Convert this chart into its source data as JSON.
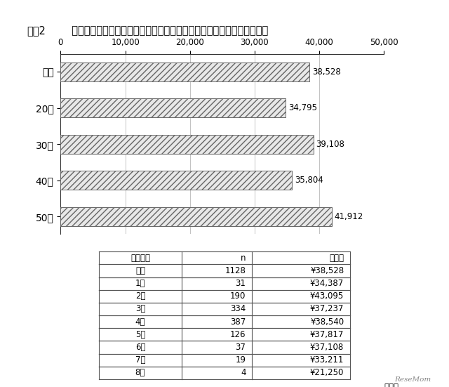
{
  "title_prefix": "図表2",
  "title_main": "  今年のゴールデンウィークの予算（全体、年代別、世帯人数別平均値）",
  "bar_categories": [
    "全体",
    "20代",
    "30代",
    "40代",
    "50代"
  ],
  "bar_values": [
    38528,
    34795,
    39108,
    35804,
    41912
  ],
  "bar_labels": [
    "38,528",
    "34,795",
    "39,108",
    "35,804",
    "41,912"
  ],
  "xlim": [
    0,
    50000
  ],
  "xticks": [
    0,
    10000,
    20000,
    30000,
    40000,
    50000
  ],
  "xtick_labels": [
    "0",
    "10,000",
    "20,000",
    "30,000",
    "40,000",
    "50,000"
  ],
  "xlabel_unit": "（円）",
  "table_headers": [
    "世帯人数",
    "n",
    "平均値"
  ],
  "table_rows": [
    [
      "全体",
      "1128",
      "¥38,528"
    ],
    [
      "1人",
      "31",
      "¥34,387"
    ],
    [
      "2人",
      "190",
      "¥43,095"
    ],
    [
      "3人",
      "334",
      "¥37,237"
    ],
    [
      "4人",
      "387",
      "¥38,540"
    ],
    [
      "5人",
      "126",
      "¥37,817"
    ],
    [
      "6人",
      "37",
      "¥37,108"
    ],
    [
      "7人",
      "19",
      "¥33,211"
    ],
    [
      "8人",
      "4",
      "¥21,250"
    ]
  ],
  "hatch_pattern": "////",
  "bar_facecolor": "#e8e8e8",
  "bar_edgecolor": "#666666",
  "background_color": "#ffffff",
  "title_fontsize": 10.5,
  "axis_fontsize": 8.5,
  "label_fontsize": 8.5,
  "table_fontsize": 8.5,
  "ytick_fontsize": 10
}
